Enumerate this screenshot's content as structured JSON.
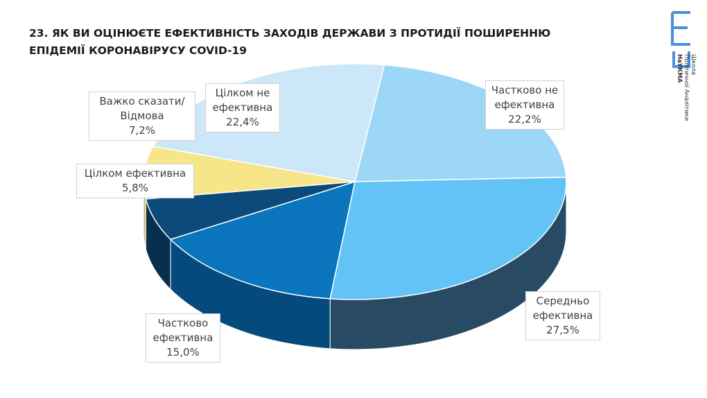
{
  "logo": {
    "text": [
      "Школа",
      "Політичної Аналітики",
      "НаУКМА"
    ],
    "color": "#4a90d9"
  },
  "chart_data": {
    "type": "pie",
    "title": "23. ЯК ВИ ОЦІНЮЄТЕ ЕФЕКТИВНІСТЬ ЗАХОДІВ ДЕРЖАВИ З ПРОТИДІЇ ПОШИРЕННЮ ЕПІДЕМІЇ КОРОНАВІРУСУ COVID-19",
    "three_d": true,
    "unit": "%",
    "slices": [
      {
        "label": "Частково не ефективна",
        "value": 22.2,
        "display": "22,2%",
        "color": "#9dd7f7",
        "side": "#6fa9c9"
      },
      {
        "label": "Середньо ефективна",
        "value": 27.5,
        "display": "27,5%",
        "color": "#63c3f7",
        "side": "#284a63"
      },
      {
        "label": "Частково ефективна",
        "value": 15.0,
        "display": "15,0%",
        "color": "#0a74bd",
        "side": "#054a7c"
      },
      {
        "label": "Цілком ефективна",
        "value": 5.8,
        "display": "5,8%",
        "color": "#0b4a7a",
        "side": "#072f4e"
      },
      {
        "label": "Важко сказати/Відмова",
        "value": 7.2,
        "display": "7,2%",
        "color": "#f7e58a",
        "side": "#c9b75e"
      },
      {
        "label": "Цілком не ефективна",
        "value": 22.4,
        "display": "22,4%",
        "color": "#cbe7f8",
        "side": "#9fc0d4"
      }
    ]
  }
}
